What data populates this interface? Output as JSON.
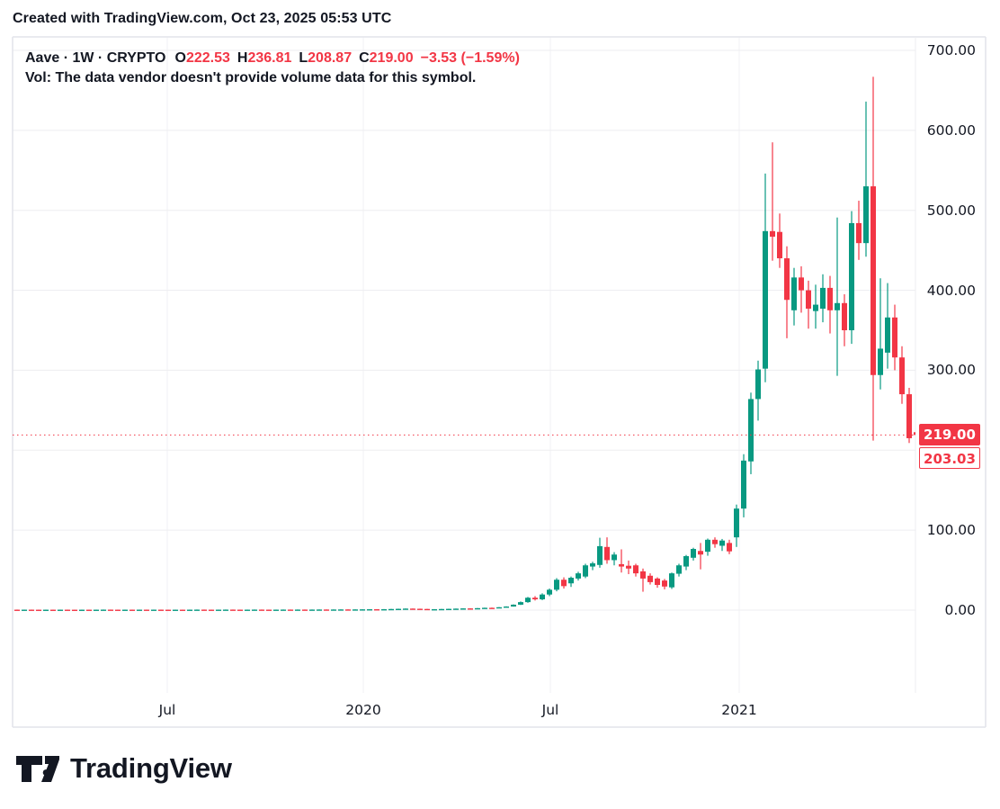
{
  "header": {
    "credit": "Created with TradingView.com, Oct 23, 2025 05:53 UTC"
  },
  "legend": {
    "symbol_title": "Aave · 1W · CRYPTO",
    "ohlc": {
      "o_label": "O",
      "o_value": "222.53",
      "h_label": "H",
      "h_value": "236.81",
      "l_label": "L",
      "l_value": "208.87",
      "c_label": "C",
      "c_value": "219.00",
      "change": "−3.53 (−1.59%)"
    },
    "vol_note": "Vol: The data vendor doesn't provide volume data for this symbol."
  },
  "colors": {
    "up": "#089981",
    "down": "#f23645",
    "accent_red": "#f23645",
    "text": "#131722",
    "grid_h": "#ededf0",
    "grid_v": "#f2f2f5",
    "border": "#e2e4ea"
  },
  "logo": {
    "text": "TradingView"
  },
  "chart_data": {
    "type": "candlestick",
    "title": "Aave · 1W · CRYPTO",
    "symbol": "Aave",
    "interval": "1W",
    "exchange": "CRYPTO",
    "approx_start_week": "2019-02-04",
    "ylim": [
      0,
      700
    ],
    "grid_step": 100,
    "legend_position": "top-left",
    "price_ticks": [
      {
        "label": "700.00",
        "price": 700
      },
      {
        "label": "600.00",
        "price": 600
      },
      {
        "label": "500.00",
        "price": 500
      },
      {
        "label": "400.00",
        "price": 400
      },
      {
        "label": "300.00",
        "price": 300
      },
      {
        "label": "100.00",
        "price": 100
      },
      {
        "label": "0.00",
        "price": 0
      }
    ],
    "time_ticks": [
      {
        "label": "Jul",
        "x": 186
      },
      {
        "label": "2020",
        "x": 404
      },
      {
        "label": "Jul",
        "x": 612
      },
      {
        "label": "2021",
        "x": 822
      }
    ],
    "last_price": {
      "label": "219.00",
      "value": 219.0
    },
    "secondary_price": {
      "label": "203.03",
      "value": 203.03
    },
    "last_candle_ohlc": {
      "open": 222.53,
      "high": 236.81,
      "low": 208.87,
      "close": 219.0,
      "change": -3.53,
      "change_pct": -1.59
    },
    "candles": [
      [
        0.55,
        0.7,
        0.4,
        0.5
      ],
      [
        0.5,
        0.66,
        0.42,
        0.56
      ],
      [
        0.56,
        0.68,
        0.42,
        0.5
      ],
      [
        0.5,
        0.6,
        0.35,
        0.45
      ],
      [
        0.45,
        0.62,
        0.38,
        0.52
      ],
      [
        0.52,
        0.62,
        0.38,
        0.47
      ],
      [
        0.47,
        0.64,
        0.4,
        0.54
      ],
      [
        0.54,
        0.64,
        0.4,
        0.49
      ],
      [
        0.49,
        0.58,
        0.35,
        0.44
      ],
      [
        0.44,
        0.62,
        0.37,
        0.52
      ],
      [
        0.52,
        0.6,
        0.37,
        0.46
      ],
      [
        0.46,
        0.63,
        0.4,
        0.53
      ],
      [
        0.53,
        0.72,
        0.46,
        0.6
      ],
      [
        0.6,
        0.7,
        0.45,
        0.53
      ],
      [
        0.53,
        0.62,
        0.4,
        0.47
      ],
      [
        0.47,
        0.65,
        0.41,
        0.55
      ],
      [
        0.55,
        0.65,
        0.42,
        0.49
      ],
      [
        0.49,
        0.66,
        0.43,
        0.56
      ],
      [
        0.56,
        0.66,
        0.43,
        0.5
      ],
      [
        0.5,
        0.67,
        0.44,
        0.57
      ],
      [
        0.57,
        0.67,
        0.44,
        0.51
      ],
      [
        0.51,
        0.6,
        0.4,
        0.46
      ],
      [
        0.46,
        0.63,
        0.4,
        0.53
      ],
      [
        0.53,
        0.62,
        0.41,
        0.48
      ],
      [
        0.48,
        0.65,
        0.42,
        0.55
      ],
      [
        0.55,
        0.74,
        0.48,
        0.62
      ],
      [
        0.62,
        0.72,
        0.48,
        0.55
      ],
      [
        0.55,
        0.64,
        0.42,
        0.49
      ],
      [
        0.49,
        0.66,
        0.43,
        0.56
      ],
      [
        0.56,
        0.75,
        0.49,
        0.63
      ],
      [
        0.63,
        0.73,
        0.49,
        0.56
      ],
      [
        0.56,
        0.65,
        0.43,
        0.5
      ],
      [
        0.5,
        0.67,
        0.44,
        0.57
      ],
      [
        0.57,
        0.76,
        0.5,
        0.64
      ],
      [
        0.64,
        0.74,
        0.5,
        0.57
      ],
      [
        0.57,
        0.66,
        0.44,
        0.51
      ],
      [
        0.51,
        0.68,
        0.45,
        0.58
      ],
      [
        0.58,
        0.77,
        0.51,
        0.65
      ],
      [
        0.65,
        0.75,
        0.51,
        0.58
      ],
      [
        0.58,
        0.78,
        0.52,
        0.66
      ],
      [
        0.66,
        0.76,
        0.52,
        0.59
      ],
      [
        0.59,
        0.79,
        0.53,
        0.67
      ],
      [
        0.67,
        0.88,
        0.58,
        0.75
      ],
      [
        0.75,
        0.86,
        0.58,
        0.67
      ],
      [
        0.67,
        0.89,
        0.6,
        0.76
      ],
      [
        0.76,
        0.98,
        0.66,
        0.85
      ],
      [
        0.85,
        0.96,
        0.66,
        0.76
      ],
      [
        0.76,
        0.99,
        0.68,
        0.86
      ],
      [
        0.86,
        1.12,
        0.78,
        0.97
      ],
      [
        0.97,
        1.25,
        0.88,
        1.1
      ],
      [
        1.1,
        1.24,
        0.92,
        1.0
      ],
      [
        1.0,
        1.3,
        0.92,
        1.15
      ],
      [
        1.15,
        1.55,
        1.05,
        1.38
      ],
      [
        1.38,
        1.8,
        1.25,
        1.62
      ],
      [
        1.62,
        2.1,
        1.45,
        1.9
      ],
      [
        1.9,
        2.05,
        1.55,
        1.7
      ],
      [
        1.7,
        1.85,
        1.3,
        1.45
      ],
      [
        1.45,
        1.55,
        0.62,
        0.85
      ],
      [
        0.85,
        1.25,
        0.8,
        1.15
      ],
      [
        1.15,
        1.5,
        1.05,
        1.38
      ],
      [
        1.38,
        1.75,
        1.25,
        1.6
      ],
      [
        1.6,
        2.0,
        1.45,
        1.85
      ],
      [
        1.85,
        2.3,
        1.7,
        2.15
      ],
      [
        2.15,
        2.4,
        1.85,
        2.0
      ],
      [
        2.0,
        2.6,
        1.85,
        2.45
      ],
      [
        2.45,
        3.1,
        2.25,
        2.9
      ],
      [
        2.9,
        3.2,
        2.5,
        2.7
      ],
      [
        2.7,
        3.8,
        2.55,
        3.6
      ],
      [
        3.6,
        4.8,
        3.4,
        4.5
      ],
      [
        4.5,
        7.2,
        4.3,
        6.8
      ],
      [
        6.8,
        10.8,
        6.4,
        10.0
      ],
      [
        10.0,
        16.5,
        9.2,
        15.5
      ],
      [
        15.5,
        17.5,
        12.0,
        13.5
      ],
      [
        13.5,
        21.0,
        12.5,
        19.5
      ],
      [
        19.5,
        27.0,
        17.5,
        25.5
      ],
      [
        25.5,
        40.0,
        23.5,
        38.0
      ],
      [
        38.0,
        41.0,
        27.0,
        30.0
      ],
      [
        33.5,
        42.0,
        29.0,
        40.5
      ],
      [
        39.5,
        48.0,
        37.0,
        46.0
      ],
      [
        42.0,
        58.0,
        40.0,
        56.0
      ],
      [
        54.5,
        60.5,
        50.0,
        58.5
      ],
      [
        56.5,
        90.5,
        53.0,
        80.0
      ],
      [
        79.0,
        91.0,
        58.0,
        62.5
      ],
      [
        62.5,
        72.5,
        56.0,
        69.5
      ],
      [
        57.5,
        76.0,
        47.0,
        54.5
      ],
      [
        55.5,
        62.0,
        45.0,
        52.0
      ],
      [
        56.0,
        58.0,
        42.0,
        46.0
      ],
      [
        48.5,
        52.0,
        23.0,
        39.5
      ],
      [
        43.0,
        46.0,
        32.0,
        35.0
      ],
      [
        39.5,
        41.0,
        28.0,
        31.5
      ],
      [
        37.0,
        39.0,
        26.0,
        29.5
      ],
      [
        28.5,
        47.0,
        26.5,
        46.0
      ],
      [
        45.5,
        58.0,
        42.0,
        56.0
      ],
      [
        54.5,
        69.0,
        50.0,
        67.5
      ],
      [
        65.5,
        78.0,
        62.0,
        76.5
      ],
      [
        74.0,
        84.0,
        51.0,
        69.5
      ],
      [
        73.0,
        89.5,
        68.0,
        88.0
      ],
      [
        88.0,
        91.0,
        78.0,
        82.5
      ],
      [
        80.5,
        89.0,
        74.0,
        87.0
      ],
      [
        84.0,
        88.0,
        70.0,
        73.5
      ],
      [
        91.0,
        132.0,
        79.0,
        127.0
      ],
      [
        127.0,
        195.0,
        116.0,
        187.0
      ],
      [
        186.0,
        272.0,
        170.0,
        264.0
      ],
      [
        264.0,
        312.0,
        237.0,
        301.0
      ],
      [
        302.0,
        546.0,
        285.0,
        474.0
      ],
      [
        474.0,
        585.0,
        437.0,
        467.0
      ],
      [
        473.0,
        496.0,
        428.0,
        440.0
      ],
      [
        440.0,
        455.0,
        340.0,
        388.0
      ],
      [
        375.0,
        428.0,
        356.0,
        416.0
      ],
      [
        416.0,
        430.0,
        372.0,
        400.0
      ],
      [
        400.0,
        412.0,
        352.0,
        377.0
      ],
      [
        374.0,
        407.0,
        352.0,
        382.0
      ],
      [
        377.0,
        420.0,
        360.0,
        403.0
      ],
      [
        403.0,
        418.0,
        346.0,
        375.0
      ],
      [
        375.0,
        491.0,
        293.0,
        384.0
      ],
      [
        384.0,
        395.0,
        330.0,
        350.0
      ],
      [
        350.0,
        499.0,
        333.0,
        484.0
      ],
      [
        484.0,
        512.0,
        438.0,
        459.0
      ],
      [
        459.0,
        636.0,
        442.0,
        530.0
      ],
      [
        530.0,
        667.0,
        212.0,
        294.0
      ],
      [
        294.0,
        415.0,
        276.0,
        327.0
      ],
      [
        322.0,
        409.0,
        302.0,
        366.0
      ],
      [
        366.0,
        382.0,
        300.0,
        316.0
      ],
      [
        316.0,
        330.0,
        258.0,
        270.0
      ],
      [
        270.0,
        278.0,
        209.0,
        215.0
      ],
      [
        222.53,
        236.81,
        208.87,
        219.0
      ]
    ]
  }
}
